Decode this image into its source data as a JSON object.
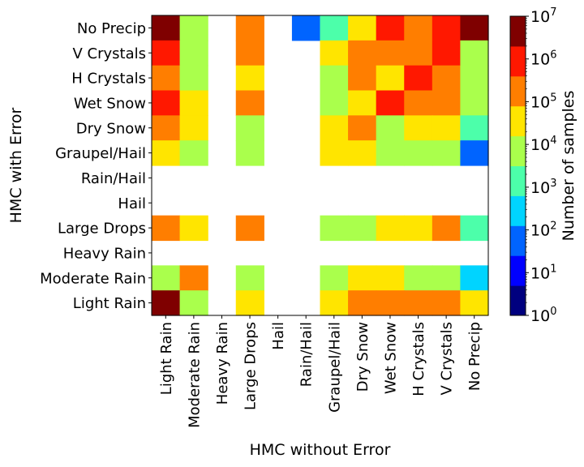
{
  "chart_data": {
    "type": "heatmap",
    "title": "",
    "xlabel": "HMC without Error",
    "ylabel": "HMC with Error",
    "x_categories": [
      "Light Rain",
      "Moderate Rain",
      "Heavy Rain",
      "Large Drops",
      "Hail",
      "Rain/Hail",
      "Graupel/Hail",
      "Dry Snow",
      "Wet Snow",
      "H Crystals",
      "V Crystals",
      "No Precip"
    ],
    "y_categories": [
      "No Precip",
      "V Crystals",
      "H Crystals",
      "Wet Snow",
      "Dry Snow",
      "Graupel/Hail",
      "Rain/Hail",
      "Hail",
      "Large Drops",
      "Heavy Rain",
      "Moderate Rain",
      "Light Rain"
    ],
    "scale": "log",
    "values": [
      [
        4500000,
        7000,
        null,
        180000,
        null,
        56,
        1400,
        35000,
        900000,
        180000,
        900000,
        4500000
      ],
      [
        900000,
        7000,
        null,
        180000,
        null,
        null,
        35000,
        180000,
        180000,
        180000,
        900000,
        7000
      ],
      [
        180000,
        7000,
        null,
        35000,
        null,
        null,
        7000,
        180000,
        35000,
        900000,
        180000,
        7000
      ],
      [
        900000,
        35000,
        null,
        180000,
        null,
        null,
        7000,
        35000,
        900000,
        180000,
        180000,
        7000
      ],
      [
        180000,
        35000,
        null,
        7000,
        null,
        null,
        35000,
        180000,
        7000,
        35000,
        35000,
        1400
      ],
      [
        35000,
        7000,
        null,
        7000,
        null,
        null,
        35000,
        35000,
        7000,
        7000,
        7000,
        56
      ],
      [
        null,
        null,
        null,
        null,
        null,
        null,
        null,
        null,
        null,
        null,
        null,
        null
      ],
      [
        null,
        null,
        null,
        null,
        null,
        null,
        null,
        null,
        null,
        null,
        null,
        null
      ],
      [
        180000,
        35000,
        null,
        180000,
        null,
        null,
        7000,
        7000,
        35000,
        35000,
        180000,
        1400
      ],
      [
        null,
        null,
        null,
        null,
        null,
        null,
        null,
        null,
        null,
        null,
        null,
        null
      ],
      [
        7000,
        180000,
        null,
        7000,
        null,
        null,
        7000,
        35000,
        35000,
        7000,
        7000,
        280
      ],
      [
        4500000,
        7000,
        null,
        35000,
        null,
        null,
        35000,
        180000,
        180000,
        180000,
        180000,
        35000
      ]
    ],
    "colorbar": {
      "label": "Number of samples",
      "range": [
        1,
        10000000
      ],
      "tick_exponents": [
        "0",
        "1",
        "2",
        "3",
        "4",
        "5",
        "6",
        "7"
      ],
      "tick_base": "10",
      "n_bins": 10,
      "colors": [
        "#00007f",
        "#0000ff",
        "#0064ff",
        "#00d4ff",
        "#4cffaa",
        "#aaff4c",
        "#ffe500",
        "#ff7e00",
        "#ff1800",
        "#7f0000"
      ]
    }
  }
}
